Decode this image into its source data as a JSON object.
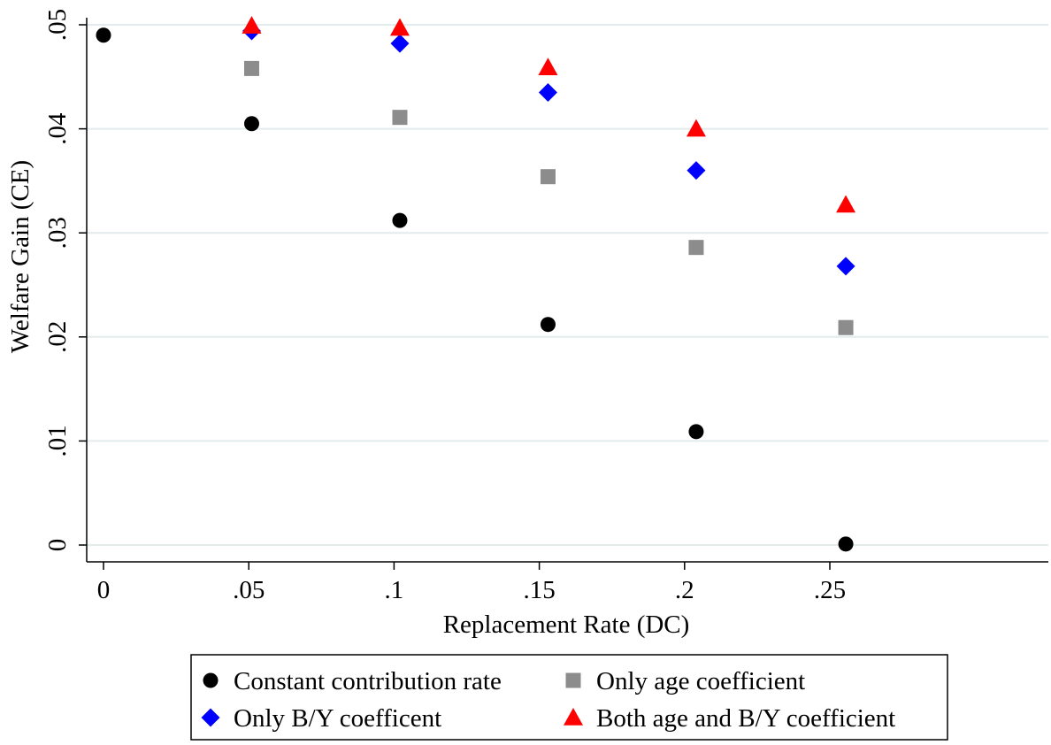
{
  "chart_data": {
    "type": "scatter",
    "xlabel": "Replacement Rate (DC)",
    "ylabel": "Welfare Gain (CE)",
    "xlim": [
      0,
      0.26
    ],
    "ylim": [
      0,
      0.05
    ],
    "xticks": [
      {
        "value": 0,
        "label": "0"
      },
      {
        "value": 0.05,
        "label": ".05"
      },
      {
        "value": 0.1,
        "label": ".1"
      },
      {
        "value": 0.15,
        "label": ".15"
      },
      {
        "value": 0.2,
        "label": ".2"
      },
      {
        "value": 0.25,
        "label": ".25"
      }
    ],
    "yticks": [
      {
        "value": 0,
        "label": "0"
      },
      {
        "value": 0.01,
        "label": ".01"
      },
      {
        "value": 0.02,
        "label": ".02"
      },
      {
        "value": 0.03,
        "label": ".03"
      },
      {
        "value": 0.04,
        "label": ".04"
      },
      {
        "value": 0.05,
        "label": ".05"
      }
    ],
    "grid": "horizontal",
    "legend_position": "bottom",
    "series": [
      {
        "name": "Constant contribution rate",
        "marker": "circle",
        "color": "#000000",
        "points": [
          [
            0,
            0.049
          ],
          [
            0.051,
            0.0405
          ],
          [
            0.102,
            0.0312
          ],
          [
            0.153,
            0.0212
          ],
          [
            0.204,
            0.0109
          ],
          [
            0.2555,
            0.0001
          ]
        ]
      },
      {
        "name": "Only age coefficient",
        "marker": "square",
        "color": "#8c8c8c",
        "points": [
          [
            0.051,
            0.0458
          ],
          [
            0.102,
            0.0411
          ],
          [
            0.153,
            0.0354
          ],
          [
            0.204,
            0.0286
          ],
          [
            0.2555,
            0.0209
          ]
        ]
      },
      {
        "name": "Only B/Y coefficent",
        "marker": "diamond",
        "color": "#0000ff",
        "points": [
          [
            0.051,
            0.0494
          ],
          [
            0.102,
            0.0482
          ],
          [
            0.153,
            0.0435
          ],
          [
            0.204,
            0.036
          ],
          [
            0.2555,
            0.0268
          ]
        ]
      },
      {
        "name": "Both age and B/Y coefficient",
        "marker": "triangle",
        "color": "#ff0000",
        "points": [
          [
            0.051,
            0.0499
          ],
          [
            0.102,
            0.0497
          ],
          [
            0.153,
            0.0459
          ],
          [
            0.204,
            0.04
          ],
          [
            0.2555,
            0.0327
          ]
        ]
      }
    ]
  }
}
